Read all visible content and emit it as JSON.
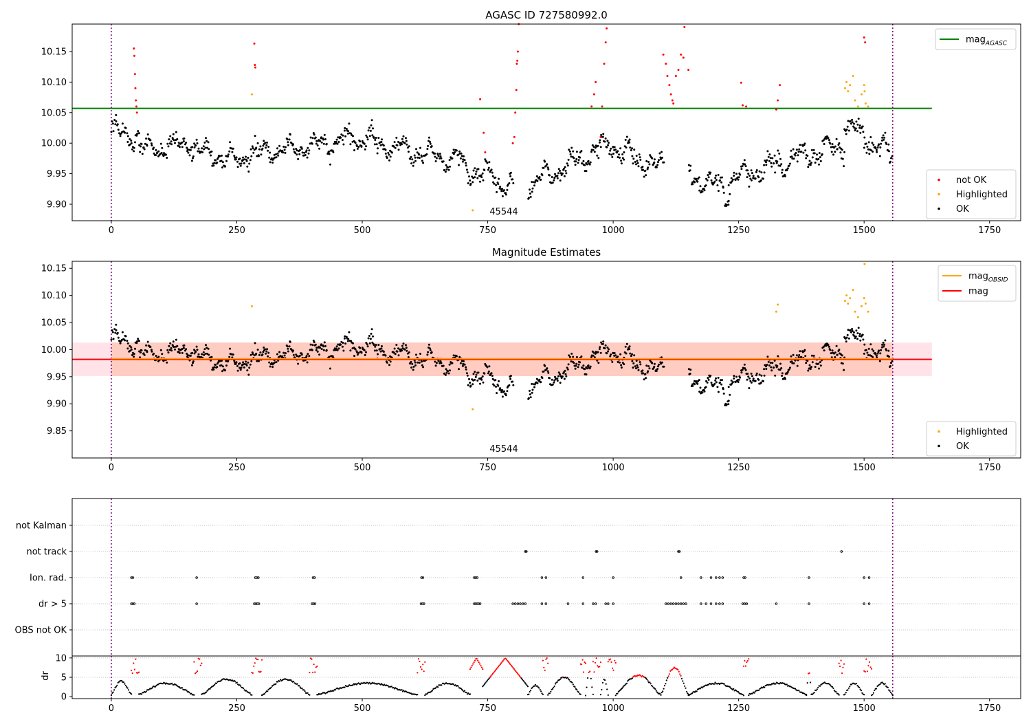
{
  "colors": {
    "not_ok": "#ff0000",
    "highlighted": "#ffa500",
    "ok": "#000000",
    "agasc_line": "#008000",
    "obsid_line": "#ffa500",
    "mag_line": "#ff0000",
    "obs_boundary": "#800080",
    "band_fill": "#ffc0cb",
    "band_fill2": "#ffa07a",
    "frame": "#000000",
    "grid": "#b0b0b0"
  },
  "chart_data": [
    {
      "type": "scatter",
      "panel": "agasc",
      "title": "AGASC ID 727580992.0",
      "xlim": [
        -78,
        1812
      ],
      "ylim": [
        9.873,
        10.195
      ],
      "xticks": [
        0,
        250,
        500,
        750,
        1000,
        1250,
        1500,
        1750
      ],
      "yticks": [
        9.9,
        9.95,
        10.0,
        10.05,
        10.1,
        10.15
      ],
      "xtick_labels": [
        "0",
        "250",
        "500",
        "750",
        "1000",
        "1250",
        "1500",
        "1750"
      ],
      "ytick_labels": [
        "9.90",
        "9.95",
        "10.00",
        "10.05",
        "10.10",
        "10.15"
      ],
      "obs_label": "45544",
      "obs_boundaries": [
        0,
        1557
      ],
      "mag_agasc": 10.057,
      "legend_lines": [
        {
          "label": "mag",
          "sub": "AGASC",
          "color": "#008000"
        }
      ],
      "legend_markers": [
        {
          "label": "not OK",
          "color": "#ff0000"
        },
        {
          "label": "Highlighted",
          "color": "#ffa500"
        },
        {
          "label": "OK",
          "color": "#000000"
        }
      ],
      "segments_ok": [
        {
          "x": [
            0,
            55
          ],
          "y": [
            10.02,
            10.01
          ]
        },
        {
          "x": [
            55,
            160
          ],
          "y": [
            9.99,
            10.0
          ]
        },
        {
          "x": [
            160,
            260
          ],
          "y": [
            9.99,
            9.97
          ]
        },
        {
          "x": [
            260,
            520
          ],
          "y": [
            9.98,
            10.01
          ]
        },
        {
          "x": [
            520,
            700
          ],
          "y": [
            10.0,
            9.97
          ]
        },
        {
          "x": [
            700,
            800
          ],
          "y": [
            9.96,
            9.93
          ]
        },
        {
          "x": [
            830,
            1000
          ],
          "y": [
            9.93,
            10.0
          ]
        },
        {
          "x": [
            1000,
            1100
          ],
          "y": [
            9.99,
            9.96
          ]
        },
        {
          "x": [
            1150,
            1230
          ],
          "y": [
            9.95,
            9.92
          ]
        },
        {
          "x": [
            1230,
            1460
          ],
          "y": [
            9.94,
            10.0
          ]
        },
        {
          "x": [
            1460,
            1555
          ],
          "y": [
            10.03,
            9.98
          ]
        }
      ],
      "not_ok_points": [
        [
          45,
          10.155
        ],
        [
          46,
          10.143
        ],
        [
          47,
          10.113
        ],
        [
          48,
          10.09
        ],
        [
          49,
          10.07
        ],
        [
          50,
          10.06
        ],
        [
          51,
          10.05
        ],
        [
          285,
          10.163
        ],
        [
          286,
          10.128
        ],
        [
          287,
          10.124
        ],
        [
          735,
          10.072
        ],
        [
          742,
          10.017
        ],
        [
          745,
          9.985
        ],
        [
          800,
          10.0
        ],
        [
          803,
          10.01
        ],
        [
          805,
          10.05
        ],
        [
          807,
          10.087
        ],
        [
          808,
          10.13
        ],
        [
          809,
          10.135
        ],
        [
          810,
          10.15
        ],
        [
          812,
          10.195
        ],
        [
          957,
          10.06
        ],
        [
          962,
          10.08
        ],
        [
          965,
          10.1
        ],
        [
          975,
          10.01
        ],
        [
          978,
          10.06
        ],
        [
          982,
          10.13
        ],
        [
          985,
          10.165
        ],
        [
          987,
          10.188
        ],
        [
          1100,
          10.145
        ],
        [
          1105,
          10.13
        ],
        [
          1108,
          10.11
        ],
        [
          1112,
          10.095
        ],
        [
          1115,
          10.08
        ],
        [
          1118,
          10.07
        ],
        [
          1120,
          10.065
        ],
        [
          1125,
          10.11
        ],
        [
          1130,
          10.12
        ],
        [
          1135,
          10.145
        ],
        [
          1140,
          10.14
        ],
        [
          1142,
          10.19
        ],
        [
          1150,
          10.12
        ],
        [
          1255,
          10.099
        ],
        [
          1258,
          10.062
        ],
        [
          1265,
          10.06
        ],
        [
          1325,
          10.055
        ],
        [
          1328,
          10.07
        ],
        [
          1332,
          10.095
        ],
        [
          1500,
          10.173
        ],
        [
          1502,
          10.165
        ]
      ],
      "highlighted_points": [
        [
          280,
          10.08
        ],
        [
          720,
          9.89
        ],
        [
          1462,
          10.09
        ],
        [
          1465,
          10.1
        ],
        [
          1468,
          10.085
        ],
        [
          1472,
          10.095
        ],
        [
          1478,
          10.11
        ],
        [
          1482,
          10.07
        ],
        [
          1488,
          10.06
        ],
        [
          1495,
          10.08
        ],
        [
          1500,
          10.095
        ],
        [
          1501,
          10.085
        ],
        [
          1503,
          10.065
        ],
        [
          1508,
          10.06
        ]
      ]
    },
    {
      "type": "scatter",
      "panel": "obsid",
      "title": "Magnitude Estimates",
      "xlim": [
        -78,
        1812
      ],
      "ylim": [
        9.8,
        10.163
      ],
      "xticks": [
        0,
        250,
        500,
        750,
        1000,
        1250,
        1500,
        1750
      ],
      "yticks": [
        9.85,
        9.9,
        9.95,
        10.0,
        10.05,
        10.1,
        10.15
      ],
      "xtick_labels": [
        "0",
        "250",
        "500",
        "750",
        "1000",
        "1250",
        "1500",
        "1750"
      ],
      "ytick_labels": [
        "9.85",
        "9.90",
        "9.95",
        "10.00",
        "10.05",
        "10.10",
        "10.15"
      ],
      "obs_label": "45544",
      "obs_boundaries": [
        0,
        1557
      ],
      "mag": 9.982,
      "mag_obsid": 9.982,
      "band": [
        9.951,
        10.013
      ],
      "band_extent": [
        -78,
        1635
      ],
      "legend_lines": [
        {
          "label": "mag",
          "sub": "OBSID",
          "color": "#ffa500"
        },
        {
          "label": "mag",
          "sub": "",
          "color": "#ff0000"
        }
      ],
      "legend_markers": [
        {
          "label": "Highlighted",
          "color": "#ffa500"
        },
        {
          "label": "OK",
          "color": "#000000"
        }
      ],
      "highlighted_points": [
        [
          280,
          10.08
        ],
        [
          720,
          9.89
        ],
        [
          1325,
          10.07
        ],
        [
          1328,
          10.083
        ],
        [
          1462,
          10.09
        ],
        [
          1465,
          10.1
        ],
        [
          1468,
          10.085
        ],
        [
          1472,
          10.095
        ],
        [
          1478,
          10.11
        ],
        [
          1482,
          10.07
        ],
        [
          1488,
          10.06
        ],
        [
          1495,
          10.08
        ],
        [
          1500,
          10.095
        ],
        [
          1501,
          10.158
        ],
        [
          1503,
          10.085
        ],
        [
          1508,
          10.07
        ]
      ]
    },
    {
      "type": "scatter",
      "panel": "flags",
      "xlim": [
        -78,
        1812
      ],
      "categories": [
        "not Kalman",
        "not track",
        "Ion. rad.",
        "dr > 5",
        "OBS not OK"
      ],
      "obs_boundaries": [
        0,
        1557
      ],
      "flag_points": {
        "not track": [
          825,
          827,
          966,
          968,
          1130,
          1132,
          1455
        ],
        "Ion. rad.": [
          40,
          43,
          170,
          287,
          290,
          293,
          402,
          405,
          618,
          621,
          723,
          726,
          729,
          858,
          866,
          940,
          1000,
          1135,
          1175,
          1195,
          1205,
          1212,
          1218,
          1260,
          1263,
          1390,
          1500,
          1510
        ],
        "dr > 5": [
          40,
          43,
          46,
          170,
          285,
          288,
          291,
          294,
          400,
          403,
          406,
          617,
          620,
          623,
          723,
          726,
          729,
          732,
          735,
          800,
          805,
          810,
          815,
          820,
          825,
          858,
          866,
          910,
          940,
          960,
          965,
          985,
          990,
          1000,
          1105,
          1110,
          1115,
          1120,
          1125,
          1130,
          1135,
          1140,
          1145,
          1175,
          1185,
          1195,
          1205,
          1212,
          1218,
          1258,
          1262,
          1266,
          1325,
          1390,
          1500,
          1510
        ]
      }
    },
    {
      "type": "scatter",
      "panel": "dr",
      "ylabel": "dr",
      "xlim": [
        -78,
        1812
      ],
      "ylim": [
        -0.5,
        10.5
      ],
      "xticks": [
        0,
        250,
        500,
        750,
        1000,
        1250,
        1500,
        1750
      ],
      "yticks": [
        0,
        5,
        10
      ],
      "xtick_labels": [
        "0",
        "250",
        "500",
        "750",
        "1000",
        "1250",
        "1500",
        "1750"
      ],
      "ytick_labels": [
        "0",
        "5",
        "10"
      ],
      "obs_boundaries": [
        0,
        1557
      ],
      "threshold": 5,
      "bumps": [
        [
          0,
          40,
          3.5
        ],
        [
          40,
          55,
          10
        ],
        [
          55,
          165,
          3
        ],
        [
          165,
          180,
          10
        ],
        [
          180,
          280,
          4
        ],
        [
          280,
          300,
          10
        ],
        [
          300,
          395,
          4
        ],
        [
          395,
          410,
          10
        ],
        [
          410,
          610,
          3
        ],
        [
          610,
          625,
          10
        ],
        [
          625,
          715,
          3
        ],
        [
          715,
          740,
          10
        ],
        [
          740,
          830,
          10
        ],
        [
          830,
          860,
          2.5
        ],
        [
          860,
          870,
          10
        ],
        [
          870,
          935,
          4.5
        ],
        [
          935,
          945,
          10
        ],
        [
          945,
          960,
          6
        ],
        [
          960,
          975,
          10
        ],
        [
          975,
          990,
          4
        ],
        [
          990,
          1005,
          10
        ],
        [
          1005,
          1095,
          5
        ],
        [
          1095,
          1150,
          7
        ],
        [
          1150,
          1260,
          3
        ],
        [
          1260,
          1270,
          10
        ],
        [
          1270,
          1385,
          3
        ],
        [
          1385,
          1395,
          6
        ],
        [
          1395,
          1450,
          3
        ],
        [
          1450,
          1460,
          10
        ],
        [
          1460,
          1500,
          3
        ],
        [
          1500,
          1515,
          10
        ],
        [
          1515,
          1557,
          3
        ]
      ]
    }
  ]
}
